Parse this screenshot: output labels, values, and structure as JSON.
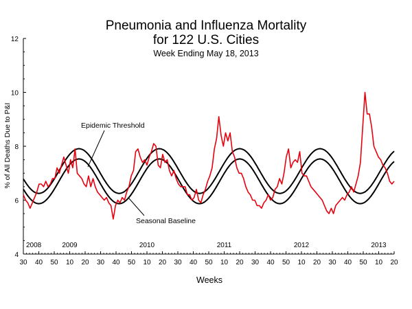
{
  "chart_data": {
    "type": "line",
    "title_line1": "Pneumonia and Influenza Mortality",
    "title_line2": "for 122 U.S. Cities",
    "subtitle": "Week Ending  May 18, 2013",
    "xlabel": "Weeks",
    "ylabel": "% of All Deaths Due to P&I",
    "ylim": [
      4,
      12
    ],
    "yticks": [
      "4",
      "6",
      "8",
      "10",
      "12"
    ],
    "x_tick_labels": [
      "30",
      "40",
      "50",
      "10",
      "20",
      "30",
      "40",
      "50",
      "10",
      "20",
      "30",
      "40",
      "50",
      "10",
      "20",
      "30",
      "40",
      "50",
      "10",
      "20",
      "30",
      "40",
      "50",
      "10",
      "20"
    ],
    "year_labels": [
      "2008",
      "2009",
      "2010",
      "2011",
      "2012",
      "2013"
    ],
    "grid": false,
    "annotations": {
      "threshold": "Epidemic Threshold",
      "baseline": "Seasonal Baseline"
    },
    "colors": {
      "observed": "#e8000d",
      "curves": "#000000"
    },
    "series": [
      {
        "values": [
          6.2,
          6.0,
          5.9,
          5.7,
          5.9,
          6.1,
          6.3,
          6.6,
          6.6,
          6.5,
          6.7,
          6.5,
          6.6,
          6.8,
          6.8,
          7.2,
          7.0,
          7.3,
          7.6,
          7.3,
          7.0,
          7.5,
          7.2,
          7.9,
          7.0,
          6.9,
          6.8,
          6.6,
          6.5,
          6.9,
          6.5,
          6.8,
          6.5,
          6.3,
          6.2,
          6.1,
          6.0,
          6.1,
          5.9,
          5.8,
          5.3,
          5.8,
          6.0,
          5.9,
          6.1,
          6.0,
          6.3,
          6.5,
          6.9,
          7.1,
          7.8,
          7.9,
          7.6,
          7.4,
          7.5,
          7.3,
          7.6,
          7.8,
          8.1,
          8.0,
          7.3,
          7.2,
          7.7,
          7.4,
          7.5,
          7.1,
          6.9,
          7.1,
          6.8,
          6.6,
          6.5,
          6.5,
          6.5,
          6.2,
          6.2,
          6.0,
          6.1,
          6.4,
          6.0,
          5.9,
          6.2,
          6.4,
          6.7,
          6.9,
          7.2,
          7.9,
          8.3,
          9.1,
          8.4,
          8.0,
          8.5,
          8.2,
          8.5,
          7.8,
          7.6,
          7.2,
          7.0,
          7.0,
          6.8,
          6.5,
          6.3,
          6.2,
          6.0,
          6.0,
          5.8,
          5.8,
          5.7,
          5.9,
          6.0,
          6.2,
          6.0,
          6.1,
          6.4,
          6.5,
          6.8,
          6.6,
          7.0,
          7.6,
          7.9,
          7.2,
          7.4,
          7.5,
          7.4,
          7.8,
          7.0,
          6.9,
          6.9,
          6.7,
          6.5,
          6.4,
          6.3,
          6.2,
          6.1,
          6.0,
          5.8,
          5.6,
          5.5,
          5.7,
          5.5,
          5.8,
          5.9,
          6.0,
          6.1,
          6.0,
          6.2,
          6.3,
          6.5,
          6.3,
          6.6,
          6.9,
          7.4,
          8.7,
          10.0,
          9.2,
          9.2,
          8.7,
          8.0,
          7.8,
          7.6,
          7.5,
          7.3,
          7.2,
          7.0,
          6.7,
          6.6,
          6.7
        ]
      }
    ]
  }
}
